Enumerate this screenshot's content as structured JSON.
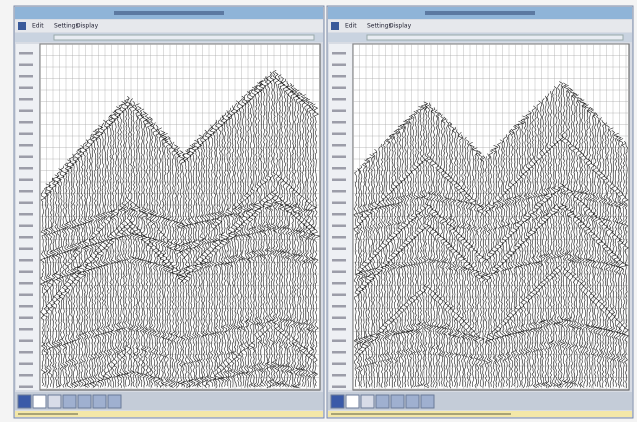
{
  "windows": [
    {
      "menu": [
        "Edit",
        "Settings",
        "Display"
      ]
    },
    {
      "menu": [
        "Edit",
        "Settings",
        "Display"
      ]
    }
  ]
}
